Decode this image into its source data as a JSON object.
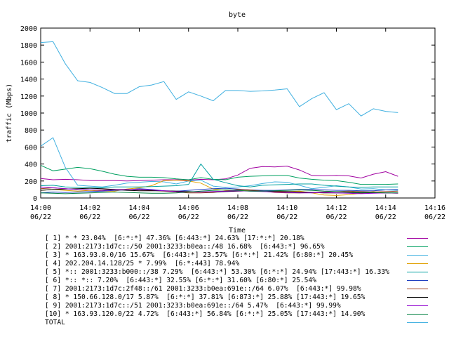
{
  "chart_data": {
    "type": "line",
    "title": "byte",
    "xlabel": "Time",
    "ylabel": "traffic (Mbps)",
    "ylim": [
      0,
      2000
    ],
    "yticks": [
      "0",
      "200",
      "400",
      "600",
      "800",
      "1000",
      "1200",
      "1400",
      "1600",
      "1800",
      "2000"
    ],
    "xlim": [
      "06/22 14:00",
      "06/22 14:16"
    ],
    "xticks": [
      {
        "time": "14:00",
        "date": "06/22"
      },
      {
        "time": "14:02",
        "date": "06/22"
      },
      {
        "time": "14:04",
        "date": "06/22"
      },
      {
        "time": "14:06",
        "date": "06/22"
      },
      {
        "time": "14:08",
        "date": "06/22"
      },
      {
        "time": "14:10",
        "date": "06/22"
      },
      {
        "time": "14:12",
        "date": "06/22"
      },
      {
        "time": "14:14",
        "date": "06/22"
      },
      {
        "time": "14:16",
        "date": "06/22"
      }
    ],
    "x": [
      "14:00:00",
      "14:00:30",
      "14:01:00",
      "14:01:30",
      "14:02:00",
      "14:02:30",
      "14:03:00",
      "14:03:30",
      "14:04:00",
      "14:04:30",
      "14:05:00",
      "14:05:30",
      "14:06:00",
      "14:06:30",
      "14:07:00",
      "14:07:30",
      "14:08:00",
      "14:08:30",
      "14:09:00",
      "14:09:30",
      "14:10:00",
      "14:10:30",
      "14:11:00",
      "14:11:30",
      "14:12:00",
      "14:12:30",
      "14:13:00",
      "14:13:30",
      "14:14:00",
      "14:14:30"
    ],
    "grid": false,
    "legend_placement": "below",
    "series": [
      {
        "name": "[ 1] * * 23.04%  [6:*:*] 47.36% [6:443:*] 24.63% [17:*:*] 20.18%",
        "color": "#a000a0",
        "values": [
          230,
          215,
          220,
          215,
          205,
          205,
          205,
          200,
          205,
          210,
          215,
          215,
          210,
          220,
          215,
          225,
          270,
          350,
          370,
          365,
          375,
          330,
          265,
          260,
          265,
          260,
          235,
          280,
          310,
          255
        ]
      },
      {
        "name": "[ 2] 2001:2173:1d7c::/50 2001:3233:b0ea::/48 16.68%  [6:443:*] 96.65%",
        "color": "#00a060",
        "values": [
          385,
          320,
          340,
          360,
          345,
          315,
          280,
          255,
          245,
          245,
          240,
          225,
          215,
          240,
          220,
          215,
          245,
          255,
          260,
          265,
          265,
          235,
          220,
          210,
          205,
          185,
          160,
          160,
          160,
          165
        ]
      },
      {
        "name": "[ 3] * 163.93.0.0/16 15.67%  [6:443:*] 23.57% [6:*:*] 21.42% [6:80:*] 20.45%",
        "color": "#40b0e0",
        "values": [
          610,
          710,
          360,
          150,
          140,
          130,
          150,
          175,
          185,
          195,
          190,
          165,
          200,
          210,
          140,
          125,
          130,
          145,
          170,
          190,
          185,
          150,
          110,
          125,
          145,
          130,
          105,
          110,
          95,
          90
        ]
      },
      {
        "name": "[ 4] 202.204.14.128/25 * 7.99%  [6:*:443] 78.94%",
        "color": "#e0a000",
        "values": [
          90,
          100,
          90,
          80,
          90,
          80,
          80,
          105,
          120,
          145,
          205,
          210,
          200,
          175,
          105,
          90,
          90,
          85,
          90,
          80,
          75,
          80,
          60,
          35,
          30,
          40,
          55,
          75,
          60,
          55
        ]
      },
      {
        "name": "[ 5] *:: 2001:3233:b000::/38 7.29%  [6:443:*] 53.30% [6:*:*] 24.94% [17:443:*] 16.33%",
        "color": "#00a0a0",
        "values": [
          145,
          150,
          130,
          125,
          120,
          120,
          130,
          130,
          130,
          135,
          140,
          145,
          160,
          400,
          220,
          180,
          145,
          130,
          150,
          155,
          160,
          165,
          165,
          150,
          140,
          130,
          125,
          130,
          130,
          130
        ]
      },
      {
        "name": "[ 6] *:: *:: 7.20%  [6:443:*] 32.55% [6:*:*] 31.60% [6:80:*] 25.54%",
        "color": "#2040c0",
        "values": [
          60,
          70,
          65,
          70,
          75,
          80,
          90,
          95,
          110,
          100,
          85,
          80,
          90,
          100,
          110,
          115,
          105,
          95,
          90,
          90,
          95,
          100,
          100,
          95,
          90,
          90,
          85,
          85,
          95,
          100
        ]
      },
      {
        "name": "[ 7] 2001:2173:1d7c:2f48::/61 2001:3233:b0ea:691e::/64 6.07%  [6:443:*] 99.98%",
        "color": "#a04020",
        "values": [
          110,
          120,
          110,
          100,
          95,
          95,
          100,
          100,
          95,
          90,
          80,
          70,
          60,
          60,
          65,
          80,
          100,
          95,
          80,
          65,
          60,
          60,
          65,
          70,
          75,
          80,
          75,
          70,
          75,
          80
        ]
      },
      {
        "name": "[ 8] * 150.66.128.0/17 5.87%  [6:*:*] 37.81% [6:873:*] 25.88% [17:443:*] 19.65%",
        "color": "#000000",
        "values": [
          90,
          100,
          105,
          110,
          115,
          110,
          100,
          90,
          85,
          85,
          85,
          80,
          75,
          70,
          70,
          75,
          80,
          85,
          80,
          75,
          75,
          70,
          65,
          60,
          60,
          60,
          60,
          60,
          60,
          60
        ]
      },
      {
        "name": "[ 9] 2001:2173:1d7c::/51 2001:3233:b0ea:691e::/64 5.47%  [6:443:*] 99.99%",
        "color": "#9000d0",
        "values": [
          130,
          120,
          110,
          100,
          95,
          90,
          95,
          100,
          100,
          95,
          85,
          75,
          70,
          70,
          75,
          80,
          85,
          80,
          75,
          70,
          65,
          60,
          60,
          65,
          60,
          55,
          50,
          55,
          60,
          55
        ]
      },
      {
        "name": "[10] * 163.93.120.0/22 4.72%  [6:443:*] 56.84% [6:*:*] 25.05% [17:443:*] 14.90%",
        "color": "#008040",
        "values": [
          60,
          55,
          50,
          55,
          60,
          65,
          70,
          65,
          60,
          55,
          55,
          60,
          70,
          80,
          90,
          95,
          90,
          80,
          80,
          85,
          90,
          95,
          90,
          80,
          75,
          70,
          65,
          65,
          60,
          60
        ]
      },
      {
        "name": "TOTAL",
        "color": "#40b0e0",
        "values": [
          1830,
          1840,
          1580,
          1380,
          1360,
          1300,
          1230,
          1230,
          1310,
          1330,
          1370,
          1160,
          1250,
          1200,
          1145,
          1265,
          1265,
          1255,
          1260,
          1270,
          1285,
          1075,
          1170,
          1240,
          1040,
          1110,
          965,
          1050,
          1020,
          1005
        ]
      }
    ]
  }
}
